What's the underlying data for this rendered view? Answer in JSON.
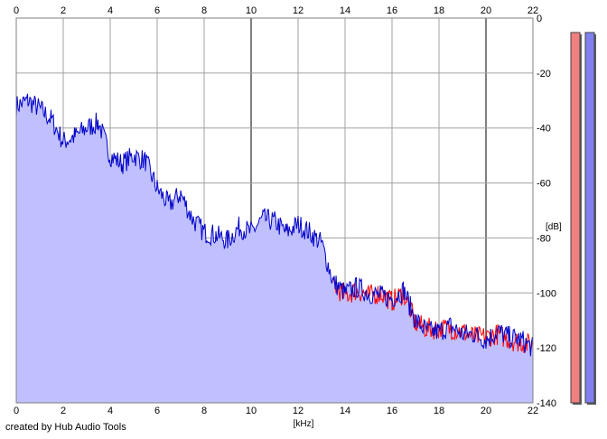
{
  "credit": "created by Hub Audio Tools",
  "colors": {
    "fill": "#c0c0ff",
    "left_channel": "#ff0000",
    "right_channel": "#0000c8",
    "grid": "#a0a0a0",
    "grid_major": "#808080",
    "meter_left": "#f08080",
    "meter_right": "#8080f0"
  },
  "meters": {
    "left_level": 0,
    "right_level": 0
  },
  "chart_data": {
    "type": "line",
    "xlabel": "[kHz]",
    "ylabel": "[dB]",
    "xlim": [
      0,
      22
    ],
    "ylim": [
      -140,
      0
    ],
    "x_ticks": [
      "0",
      "2",
      "4",
      "6",
      "8",
      "10",
      "12",
      "14",
      "16",
      "18",
      "20",
      "22"
    ],
    "y_ticks": [
      "0",
      "-20",
      "-40",
      "-60",
      "-80",
      "-100",
      "-120",
      "-140"
    ],
    "grid": true,
    "series": [
      {
        "color": "#0000c8",
        "x": [
          0.0,
          0.5,
          1.0,
          1.5,
          2.0,
          2.5,
          3.0,
          3.5,
          4.0,
          4.5,
          5.0,
          5.5,
          6.0,
          6.5,
          7.0,
          7.5,
          8.0,
          8.5,
          9.0,
          9.5,
          10.0,
          10.5,
          11.0,
          11.5,
          12.0,
          12.5,
          13.0,
          13.5,
          14.0,
          14.5,
          15.0,
          15.5,
          16.0,
          16.5,
          17.0,
          17.5,
          18.0,
          18.5,
          19.0,
          19.5,
          20.0,
          20.5,
          21.0,
          21.5,
          22.0
        ],
        "y": [
          -32,
          -30,
          -33,
          -37,
          -45,
          -43,
          -40,
          -38,
          -50,
          -53,
          -50,
          -52,
          -62,
          -68,
          -64,
          -73,
          -78,
          -79,
          -81,
          -76,
          -78,
          -73,
          -74,
          -78,
          -75,
          -78,
          -82,
          -96,
          -100,
          -98,
          -100,
          -101,
          -102,
          -99,
          -110,
          -114,
          -114,
          -112,
          -115,
          -115,
          -117,
          -114,
          -116,
          -117,
          -120
        ]
      },
      {
        "color": "#ff0000",
        "x": [
          13.5,
          14.0,
          14.5,
          15.0,
          15.5,
          16.0,
          16.5,
          17.0,
          17.5,
          18.0,
          18.5,
          19.0,
          19.5,
          20.0,
          20.5,
          21.0,
          21.5,
          22.0
        ],
        "y": [
          -97,
          -101,
          -99,
          -101,
          -100,
          -103,
          -100,
          -111,
          -113,
          -113,
          -113,
          -114,
          -116,
          -116,
          -115,
          -117,
          -118,
          -119
        ]
      }
    ]
  }
}
